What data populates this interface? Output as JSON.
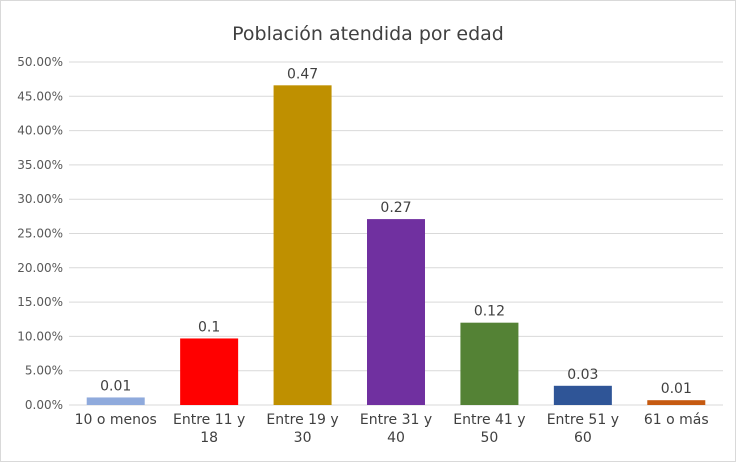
{
  "chart_data": {
    "type": "bar",
    "title": "Población atendida por edad",
    "xlabel": "",
    "ylabel": "",
    "ylim": [
      0,
      0.5
    ],
    "y_ticks": [
      "0.00%",
      "5.00%",
      "10.00%",
      "15.00%",
      "20.00%",
      "25.00%",
      "30.00%",
      "35.00%",
      "40.00%",
      "45.00%",
      "50.00%"
    ],
    "grid": true,
    "legend": "none",
    "categories": [
      [
        "10 o menos"
      ],
      [
        "Entre 11 y",
        "18"
      ],
      [
        "Entre 19 y",
        "30"
      ],
      [
        "Entre 31 y",
        "40"
      ],
      [
        "Entre 41 y",
        "50"
      ],
      [
        "Entre 51 y",
        "60"
      ],
      [
        "61 o más"
      ]
    ],
    "values": [
      0.011,
      0.097,
      0.466,
      0.271,
      0.12,
      0.028,
      0.007
    ],
    "data_labels": [
      "0.01",
      "0.1",
      "0.47",
      "0.27",
      "0.12",
      "0.03",
      "0.01"
    ],
    "colors": [
      "#8faadc",
      "#ff0000",
      "#bf9000",
      "#7030a0",
      "#548235",
      "#2f5597",
      "#c55a11"
    ]
  }
}
